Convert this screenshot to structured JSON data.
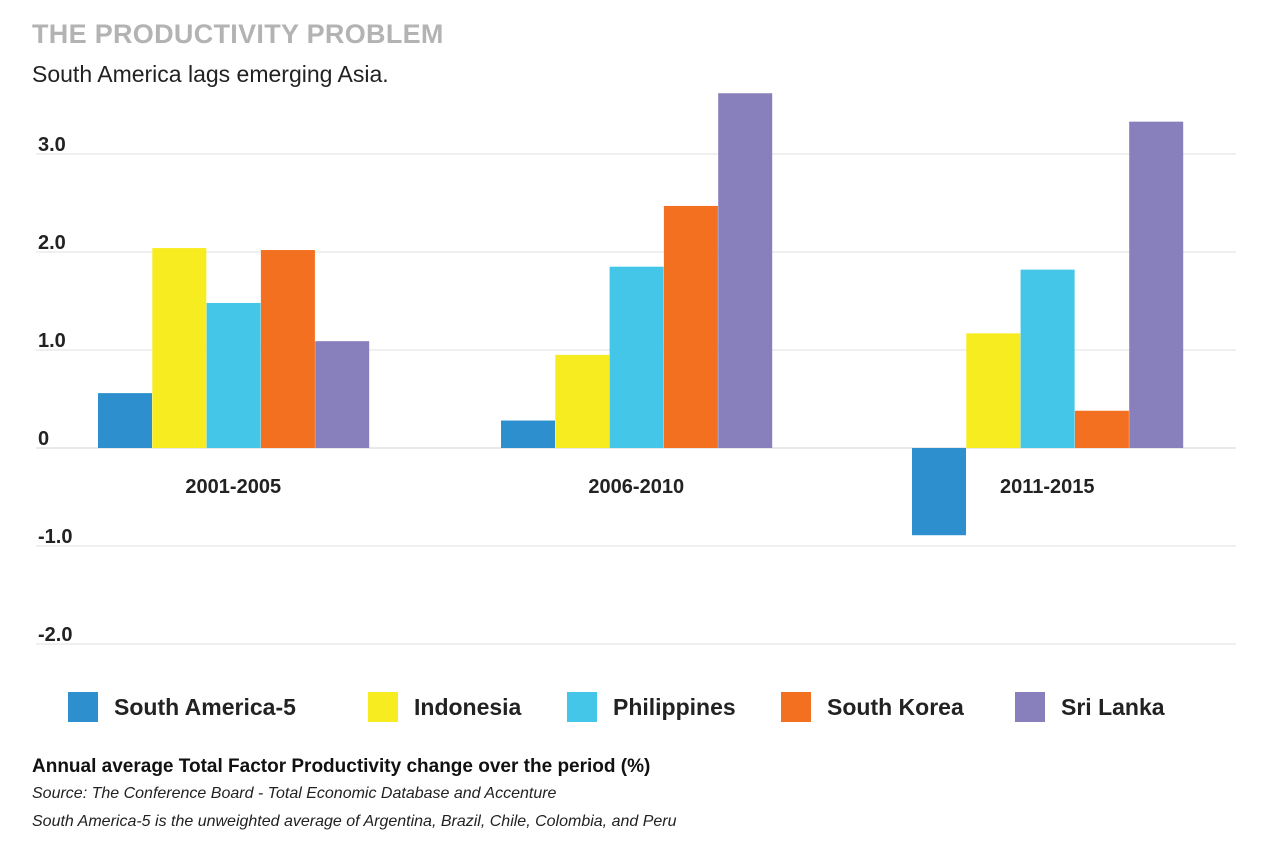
{
  "chart_data": {
    "type": "bar",
    "title": "THE PRODUCTIVITY PROBLEM",
    "subtitle": "South America lags emerging Asia.",
    "categories": [
      "2001-2005",
      "2006-2010",
      "2011-2015"
    ],
    "series": [
      {
        "name": "South America-5",
        "color": "#2e8fcf",
        "values": [
          0.56,
          0.28,
          -0.89
        ]
      },
      {
        "name": "Indonesia",
        "color": "#f7ec1f",
        "values": [
          2.04,
          0.95,
          1.17
        ]
      },
      {
        "name": "Philippines",
        "color": "#43c6e8",
        "values": [
          1.48,
          1.85,
          1.82
        ]
      },
      {
        "name": "South Korea",
        "color": "#f37021",
        "values": [
          2.02,
          2.47,
          0.38
        ]
      },
      {
        "name": "Sri Lanka",
        "color": "#8780bd",
        "values": [
          1.09,
          3.62,
          3.33
        ]
      }
    ],
    "yticks": [
      3.0,
      2.0,
      1.0,
      0,
      -1.0,
      -2.0
    ],
    "ytick_labels": [
      "3.0",
      "2.0",
      "1.0",
      "0",
      "-1.0",
      "-2.0"
    ],
    "ylim": [
      -2.0,
      3.62
    ],
    "xlabel": "",
    "ylabel": "Annual average Total Factor Productivity change over the period (%)",
    "grid": true,
    "legend_position": "bottom"
  },
  "notes": {
    "measure": "Annual average Total Factor Productivity change over the period (%)",
    "source": "Source: The Conference Board - Total Economic Database and Accenture",
    "footnote": "South America-5 is the unweighted average of Argentina, Brazil, Chile, Colombia, and Peru"
  }
}
